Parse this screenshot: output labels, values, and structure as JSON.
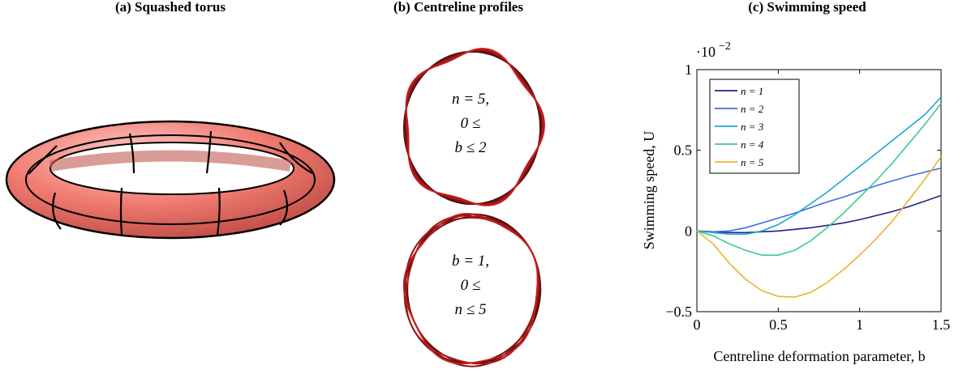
{
  "panel_a": {
    "title": "(a) Squashed torus"
  },
  "panel_b": {
    "title": "(b) Centreline profiles",
    "top_label": [
      "n = 5,",
      "0 ≤",
      "b ≤ 2"
    ],
    "bottom_label": [
      "b = 1,",
      "0 ≤",
      "n ≤ 5"
    ]
  },
  "chart_data": {
    "type": "line",
    "title": "(c) Swimming speed",
    "x_label": "Centreline deformation parameter, b",
    "y_label": "Swimming speed, U",
    "y_multiplier": {
      "base": "·10",
      "exponent": "−2"
    },
    "x": [
      0,
      0.1,
      0.2,
      0.3,
      0.4,
      0.5,
      0.6,
      0.7,
      0.8,
      0.9,
      1.0,
      1.1,
      1.2,
      1.3,
      1.4,
      1.5
    ],
    "xlim": [
      0,
      1.5
    ],
    "xticks": [
      0,
      0.5,
      1,
      1.5
    ],
    "ylim": [
      -0.5,
      1
    ],
    "yticks": [
      {
        "value": -0.5,
        "label": "−0.5"
      },
      0,
      0.5,
      1
    ],
    "legend": "upper left",
    "grid": false,
    "series": [
      {
        "name": "n = 1",
        "color": "#2a1d8c",
        "values": [
          0,
          -0.005,
          -0.01,
          -0.01,
          -0.005,
          0,
          0.01,
          0.02,
          0.035,
          0.05,
          0.07,
          0.095,
          0.12,
          0.15,
          0.185,
          0.22
        ]
      },
      {
        "name": "n = 2",
        "color": "#3c6fe2",
        "values": [
          0,
          -0.005,
          0,
          0.02,
          0.05,
          0.08,
          0.11,
          0.145,
          0.18,
          0.21,
          0.245,
          0.28,
          0.31,
          0.34,
          0.365,
          0.39
        ]
      },
      {
        "name": "n = 3",
        "color": "#1fa7d3",
        "values": [
          0,
          -0.01,
          -0.02,
          -0.02,
          0,
          0.04,
          0.1,
          0.17,
          0.24,
          0.32,
          0.4,
          0.48,
          0.56,
          0.64,
          0.72,
          0.83
        ]
      },
      {
        "name": "n = 4",
        "color": "#3ccb8b",
        "values": [
          0,
          -0.03,
          -0.08,
          -0.12,
          -0.15,
          -0.15,
          -0.12,
          -0.06,
          0.02,
          0.11,
          0.21,
          0.31,
          0.42,
          0.54,
          0.66,
          0.79
        ]
      },
      {
        "name": "n = 5",
        "color": "#e6b62e",
        "values": [
          0,
          -0.08,
          -0.2,
          -0.3,
          -0.37,
          -0.405,
          -0.41,
          -0.38,
          -0.32,
          -0.24,
          -0.15,
          -0.05,
          0.06,
          0.19,
          0.32,
          0.46
        ]
      }
    ]
  }
}
